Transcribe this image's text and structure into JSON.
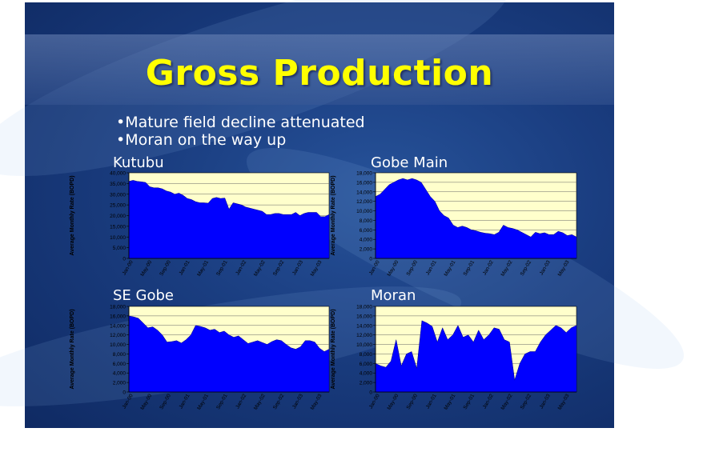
{
  "title": "Gross Production",
  "bullets": [
    "Mature field decline attenuated",
    "Moran on the way up"
  ],
  "colors": {
    "plot_bg": "#ffffcc",
    "fill": "#0000ff",
    "title": "#ffff00",
    "text": "#ffffff"
  },
  "chart_data": [
    {
      "type": "area",
      "title": "Kutubu",
      "ylabel": "Average Monthly Rate (BOPD)",
      "ylim": [
        0,
        40000
      ],
      "ytick_step": 5000,
      "x_tick_labels": [
        "Jan-00",
        "May-00",
        "Sep-00",
        "Jan-01",
        "May-01",
        "Sep-01",
        "Jan-02",
        "May-02",
        "Sep-02",
        "Jan-03",
        "May-03"
      ],
      "values": [
        36000,
        36500,
        36000,
        35800,
        35500,
        33500,
        33000,
        33000,
        32500,
        31500,
        31000,
        30000,
        30500,
        29500,
        28000,
        27500,
        26500,
        26000,
        26000,
        25800,
        28000,
        28500,
        28000,
        28200,
        23000,
        26000,
        25500,
        25000,
        24000,
        23500,
        23000,
        22500,
        22000,
        20500,
        20500,
        21000,
        21000,
        20500,
        20500,
        20500,
        21500,
        20000,
        21000,
        21500,
        21500,
        21500,
        19500,
        19500,
        20500
      ]
    },
    {
      "type": "area",
      "title": "Gobe Main",
      "ylabel": "Average Monthly Rate (BOPD)",
      "ylim": [
        0,
        18000
      ],
      "ytick_step": 2000,
      "x_tick_labels": [
        "Jan-00",
        "May-00",
        "Sep-00",
        "Jan-01",
        "May-01",
        "Sep-01",
        "Jan-02",
        "May-02",
        "Sep-02",
        "Jan-03",
        "May-03"
      ],
      "values": [
        13000,
        13500,
        14500,
        15500,
        16000,
        16500,
        16800,
        16500,
        16800,
        16500,
        16000,
        14500,
        13000,
        12000,
        10000,
        9000,
        8500,
        7000,
        6500,
        6800,
        6500,
        6000,
        5800,
        5500,
        5300,
        5200,
        5000,
        5500,
        7000,
        6500,
        6300,
        6000,
        5500,
        5000,
        4500,
        5500,
        5200,
        5400,
        5000,
        5000,
        5700,
        5400,
        4800,
        5000,
        4500
      ]
    },
    {
      "type": "area",
      "title": "SE Gobe",
      "ylabel": "Average Monthly Rate (BOPD)",
      "ylim": [
        0,
        18000
      ],
      "ytick_step": 2000,
      "x_tick_labels": [
        "Jan-00",
        "May-00",
        "Sep-00",
        "Jan-01",
        "May-01",
        "Sep-01",
        "Jan-02",
        "May-02",
        "Sep-02",
        "Jan-03",
        "May-03"
      ],
      "values": [
        16000,
        15800,
        15500,
        14500,
        13500,
        13700,
        13000,
        12000,
        10500,
        10600,
        10800,
        10300,
        11000,
        12000,
        14000,
        13800,
        13500,
        13000,
        13200,
        12500,
        12800,
        12000,
        11500,
        11800,
        11000,
        10200,
        10500,
        10800,
        10400,
        10000,
        10600,
        11000,
        10800,
        10000,
        9300,
        9000,
        9500,
        10800,
        10800,
        10500,
        9200,
        8500,
        9000
      ]
    },
    {
      "type": "area",
      "title": "Moran",
      "ylabel": "Average Monthly Rate (BOPD)",
      "ylim": [
        0,
        18000
      ],
      "ytick_step": 2000,
      "x_tick_labels": [
        "Jan-00",
        "May-00",
        "Sep-00",
        "Jan-01",
        "May-01",
        "Sep-01",
        "Jan-02",
        "May-02",
        "Sep-02",
        "Jan-03",
        "May-03"
      ],
      "values": [
        6000,
        5500,
        5200,
        6500,
        11000,
        5500,
        8000,
        8500,
        5000,
        15000,
        14500,
        13800,
        10500,
        13500,
        11000,
        12000,
        14000,
        11500,
        12000,
        10500,
        13000,
        11000,
        12000,
        13500,
        13200,
        11000,
        10500,
        2500,
        6000,
        8000,
        8500,
        8500,
        10500,
        12000,
        13000,
        14000,
        13500,
        12500,
        13500,
        14000
      ]
    }
  ]
}
